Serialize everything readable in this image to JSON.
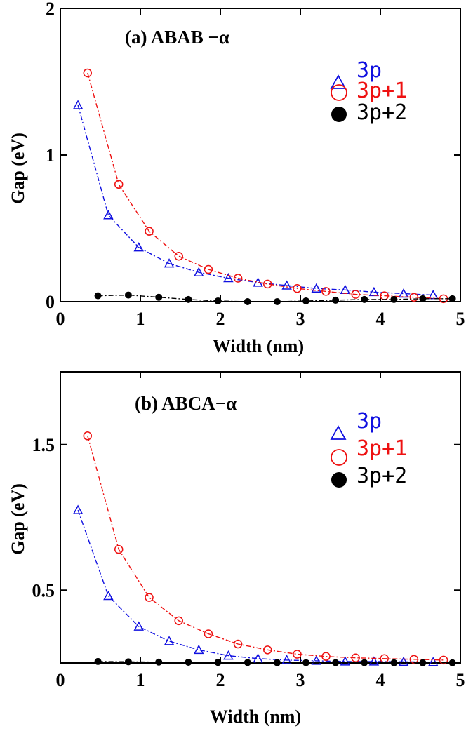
{
  "colors": {
    "series_3p": "#1010e0",
    "series_3p1": "#ee1111",
    "series_3p2": "#000000",
    "axis": "#000000"
  },
  "chart_data": [
    {
      "type": "line",
      "title": "(a) ABAB −α",
      "xlabel": "Width (nm)",
      "ylabel": "Gap (eV)",
      "xlim": [
        0,
        5
      ],
      "ylim": [
        0,
        2
      ],
      "xticks": [
        0,
        1,
        2,
        3,
        4,
        5
      ],
      "yticks": [
        0,
        1,
        2
      ],
      "xtick_labels": [
        "0",
        "1",
        "2",
        "3",
        "4",
        "5"
      ],
      "ytick_labels": [
        "0",
        "1",
        "2"
      ],
      "legend": "top-right",
      "series": [
        {
          "name": "3p",
          "marker": "triangle",
          "x": [
            0.22,
            0.6,
            0.98,
            1.36,
            1.73,
            2.1,
            2.47,
            2.83,
            3.2,
            3.56,
            3.92,
            4.29,
            4.66
          ],
          "y": [
            1.34,
            0.59,
            0.37,
            0.26,
            0.2,
            0.16,
            0.13,
            0.11,
            0.09,
            0.08,
            0.065,
            0.055,
            0.045
          ]
        },
        {
          "name": "3p+1",
          "marker": "open-circle",
          "x": [
            0.34,
            0.73,
            1.11,
            1.48,
            1.85,
            2.22,
            2.59,
            2.96,
            3.32,
            3.69,
            4.05,
            4.42,
            4.79
          ],
          "y": [
            1.56,
            0.8,
            0.48,
            0.31,
            0.22,
            0.16,
            0.12,
            0.09,
            0.07,
            0.05,
            0.04,
            0.03,
            0.02
          ]
        },
        {
          "name": "3p+2",
          "marker": "filled-circle",
          "x": [
            0.47,
            0.85,
            1.23,
            1.6,
            1.97,
            2.34,
            2.71,
            3.07,
            3.44,
            3.8,
            4.17,
            4.53,
            4.9
          ],
          "y": [
            0.04,
            0.045,
            0.03,
            0.015,
            0.005,
            0.0,
            0.0,
            0.005,
            0.01,
            0.015,
            0.015,
            0.02,
            0.02
          ]
        }
      ]
    },
    {
      "type": "line",
      "title": "(b) ABCA−α",
      "xlabel": "Width (nm)",
      "ylabel": "Gap (eV)",
      "xlim": [
        0,
        5
      ],
      "ylim": [
        0,
        2
      ],
      "xticks": [
        0,
        1,
        2,
        3,
        4,
        5
      ],
      "yticks": [
        0.5,
        1.5
      ],
      "xtick_labels": [
        "0",
        "1",
        "2",
        "3",
        "4",
        "5"
      ],
      "ytick_labels": [
        "0.5",
        "1.5"
      ],
      "legend": "top-right",
      "series": [
        {
          "name": "3p",
          "marker": "triangle",
          "x": [
            0.22,
            0.6,
            0.98,
            1.36,
            1.73,
            2.1,
            2.47,
            2.83,
            3.2,
            3.56,
            3.92,
            4.29,
            4.66
          ],
          "y": [
            1.05,
            0.46,
            0.25,
            0.15,
            0.09,
            0.05,
            0.03,
            0.02,
            0.015,
            0.01,
            0.01,
            0.008,
            0.006
          ]
        },
        {
          "name": "3p+1",
          "marker": "open-circle",
          "x": [
            0.34,
            0.73,
            1.11,
            1.48,
            1.85,
            2.22,
            2.59,
            2.96,
            3.32,
            3.69,
            4.05,
            4.42,
            4.79
          ],
          "y": [
            1.56,
            0.78,
            0.45,
            0.29,
            0.2,
            0.13,
            0.09,
            0.06,
            0.045,
            0.035,
            0.03,
            0.025,
            0.02
          ]
        },
        {
          "name": "3p+2",
          "marker": "filled-circle",
          "x": [
            0.47,
            0.85,
            1.23,
            1.6,
            1.97,
            2.34,
            2.71,
            3.07,
            3.44,
            3.8,
            4.17,
            4.53,
            4.9
          ],
          "y": [
            0.01,
            0.008,
            0.006,
            0.005,
            0.004,
            0.003,
            0.002,
            0.002,
            0.002,
            0.002,
            0.001,
            0.001,
            0.001
          ]
        }
      ]
    }
  ]
}
